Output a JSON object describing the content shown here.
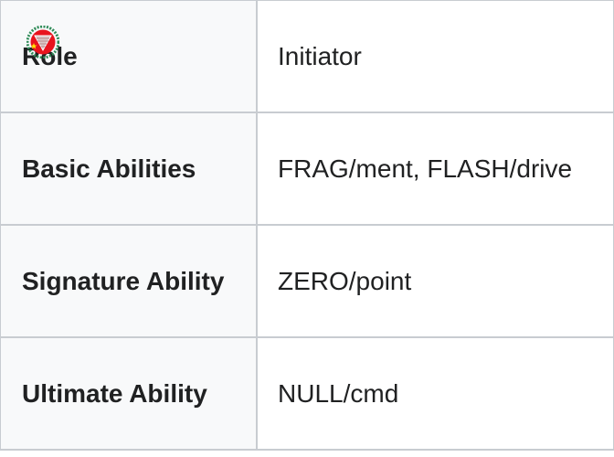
{
  "rows": [
    {
      "label": "Role",
      "value": "Initiator"
    },
    {
      "label": "Basic Abilities",
      "value": "FRAG/ment, FLASH/drive"
    },
    {
      "label": "Signature Ability",
      "value": "ZERO/point"
    },
    {
      "label": "Ultimate Ability",
      "value": "NULL/cmd"
    }
  ],
  "emblem": {
    "icon": "emblem-icon",
    "colors": {
      "ring": "#2e8b57",
      "disc": "#e8141e",
      "star": "#ffe600"
    }
  }
}
